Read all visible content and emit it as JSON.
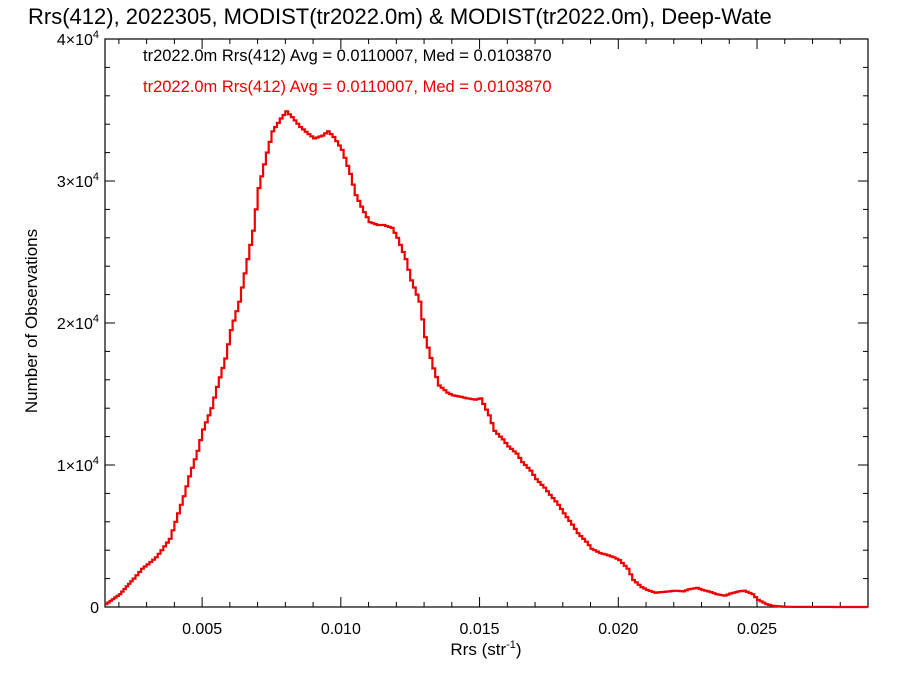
{
  "chart_data": {
    "type": "line",
    "title": "Rrs(412), 2022305, MODIST(tr2022.0m) & MODIST(tr2022.0m), Deep-Wate",
    "xlabel": "Rrs (str",
    "xlabel_exp": "-1",
    "xlabel_close": ")",
    "ylabel": "Number of Observations",
    "xlim": [
      0.0015,
      0.029
    ],
    "ylim": [
      0,
      40000
    ],
    "x_ticks": [
      {
        "value": 0.005,
        "label": "0.005"
      },
      {
        "value": 0.01,
        "label": "0.010"
      },
      {
        "value": 0.015,
        "label": "0.015"
      },
      {
        "value": 0.02,
        "label": "0.020"
      },
      {
        "value": 0.025,
        "label": "0.025"
      }
    ],
    "y_ticks": [
      {
        "value": 0,
        "base": "0",
        "exp": ""
      },
      {
        "value": 10000,
        "base": "1×10",
        "exp": "4"
      },
      {
        "value": 20000,
        "base": "2×10",
        "exp": "4"
      },
      {
        "value": 30000,
        "base": "3×10",
        "exp": "4"
      },
      {
        "value": 40000,
        "base": "4×10",
        "exp": "4"
      }
    ],
    "grid": false,
    "legend": [
      {
        "text": "tr2022.0m Rrs(412) Avg = 0.0110007, Med = 0.0103870",
        "color": "#000000"
      },
      {
        "text": "tr2022.0m Rrs(412) Avg = 0.0110007, Med = 0.0103870",
        "color": "#ee0000"
      }
    ],
    "series": [
      {
        "color": "#ee0000",
        "x": [
          0.0015,
          0.002,
          0.0025,
          0.0028,
          0.003,
          0.0033,
          0.0035,
          0.0038,
          0.004,
          0.0043,
          0.0045,
          0.0048,
          0.005,
          0.0053,
          0.0055,
          0.0058,
          0.006,
          0.0063,
          0.0065,
          0.0068,
          0.007,
          0.0073,
          0.0075,
          0.0078,
          0.008,
          0.0082,
          0.0085,
          0.0088,
          0.009,
          0.0093,
          0.0095,
          0.0097,
          0.01,
          0.0103,
          0.0105,
          0.0108,
          0.011,
          0.0113,
          0.0115,
          0.0118,
          0.012,
          0.0123,
          0.0125,
          0.0128,
          0.013,
          0.0133,
          0.0135,
          0.0138,
          0.014,
          0.0143,
          0.0145,
          0.0148,
          0.015,
          0.0153,
          0.0155,
          0.0158,
          0.016,
          0.0163,
          0.0165,
          0.0168,
          0.017,
          0.0173,
          0.0175,
          0.0178,
          0.018,
          0.0183,
          0.0185,
          0.0188,
          0.019,
          0.0193,
          0.0195,
          0.0198,
          0.02,
          0.0203,
          0.0205,
          0.0208,
          0.021,
          0.0213,
          0.0215,
          0.0218,
          0.022,
          0.0223,
          0.0225,
          0.0228,
          0.023,
          0.0233,
          0.0235,
          0.0238,
          0.024,
          0.0243,
          0.0245,
          0.0248,
          0.025,
          0.0253,
          0.0255,
          0.0258,
          0.026,
          0.0265,
          0.027,
          0.028,
          0.029
        ],
        "y": [
          200,
          900,
          2000,
          2700,
          3000,
          3500,
          4000,
          4800,
          6000,
          7800,
          9200,
          11000,
          12500,
          14000,
          15500,
          17500,
          19500,
          21500,
          23500,
          26500,
          29500,
          32000,
          33500,
          34400,
          34900,
          34500,
          33800,
          33300,
          33000,
          33200,
          33500,
          33100,
          32200,
          30500,
          29000,
          27800,
          27100,
          26900,
          26900,
          26700,
          26000,
          24500,
          23000,
          21500,
          19000,
          16800,
          15600,
          15100,
          14900,
          14800,
          14700,
          14600,
          14700,
          13500,
          12400,
          11800,
          11300,
          10800,
          10200,
          9600,
          9000,
          8400,
          7900,
          7200,
          6600,
          5800,
          5200,
          4600,
          4100,
          3800,
          3700,
          3500,
          3300,
          2700,
          1900,
          1400,
          1200,
          1000,
          1050,
          1100,
          1150,
          1100,
          1250,
          1350,
          1200,
          1050,
          900,
          800,
          950,
          1100,
          1150,
          900,
          500,
          200,
          90,
          40,
          15,
          8,
          5,
          3,
          2
        ]
      }
    ]
  }
}
